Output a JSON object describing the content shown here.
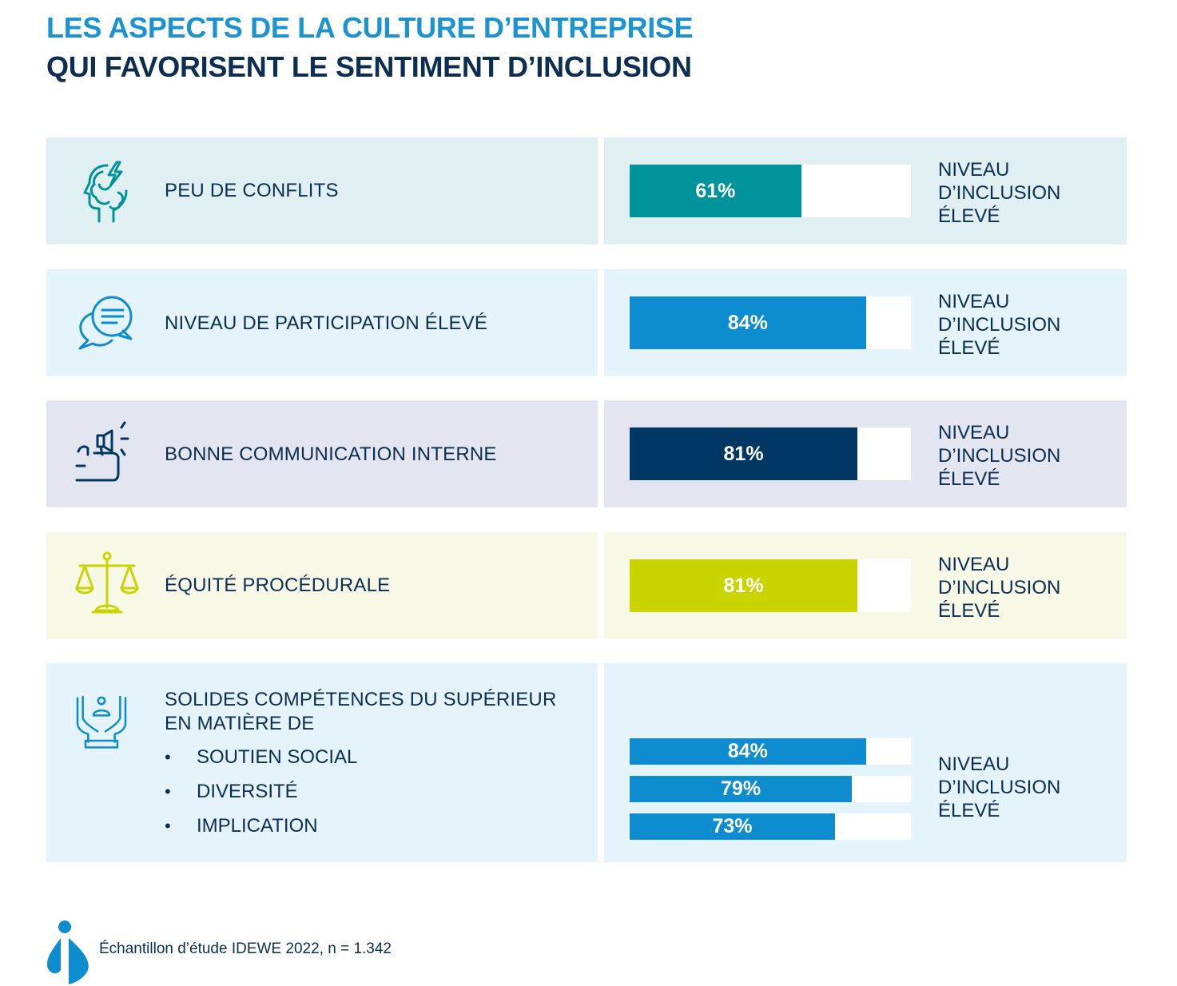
{
  "title": {
    "line1": "LES ASPECTS DE LA CULTURE D’ENTREPRISE",
    "line2": "QUI FAVORISENT LE SENTIMENT D’INCLUSION"
  },
  "level_label": {
    "line1": "NIVEAU",
    "line2": "D’INCLUSION",
    "line3": "ÉLEVÉ"
  },
  "footer": "Échantillon d’étude IDEWE 2022, n = 1.342",
  "colors": {
    "teal": "#00939c",
    "blue": "#0d8dcf",
    "navy": "#003763",
    "lime": "#c9d400",
    "bg_teal": "#e0eff1",
    "bg_blue": "#e5f3fb",
    "bg_lavender": "#e3e5f0",
    "bg_cream": "#f7f8e6"
  },
  "rows": [
    {
      "label": "PEU DE CONFLITS",
      "icon": "head-lightning-icon",
      "value_label": "61%"
    },
    {
      "label": "NIVEAU DE PARTICIPATION ÉLEVÉ",
      "icon": "speech-bubbles-icon",
      "value_label": "84%"
    },
    {
      "label": "BONNE COMMUNICATION INTERNE",
      "icon": "megaphone-thumbs-up-icon",
      "value_label": "81%"
    },
    {
      "label": "ÉQUITÉ PROCÉDURALE",
      "icon": "balance-scale-icon",
      "value_label": "81%"
    },
    {
      "label_line1": "SOLIDES COMPÉTENCES DU SUPÉRIEUR",
      "label_line2": "EN MATIÈRE DE",
      "icon": "hands-person-icon",
      "bullets": [
        "SOUTIEN SOCIAL",
        "DIVERSITÉ",
        "IMPLICATION"
      ],
      "value_labels": [
        "84%",
        "79%",
        "73%"
      ]
    }
  ],
  "chart_data": {
    "type": "bar",
    "orientation": "horizontal",
    "title": "LES ASPECTS DE LA CULTURE D’ENTREPRISE QUI FAVORISENT LE SENTIMENT D’INCLUSION",
    "categories": [
      "PEU DE CONFLITS",
      "NIVEAU DE PARTICIPATION ÉLEVÉ",
      "BONNE COMMUNICATION INTERNE",
      "ÉQUITÉ PROCÉDURALE",
      "SOUTIEN SOCIAL",
      "DIVERSITÉ",
      "IMPLICATION"
    ],
    "values": [
      61,
      84,
      81,
      81,
      84,
      79,
      73
    ],
    "unit": "%",
    "xlim": [
      0,
      100
    ],
    "series_label": "NIVEAU D’INCLUSION ÉLEVÉ",
    "source": "Échantillon d’étude IDEWE 2022, n = 1.342"
  }
}
